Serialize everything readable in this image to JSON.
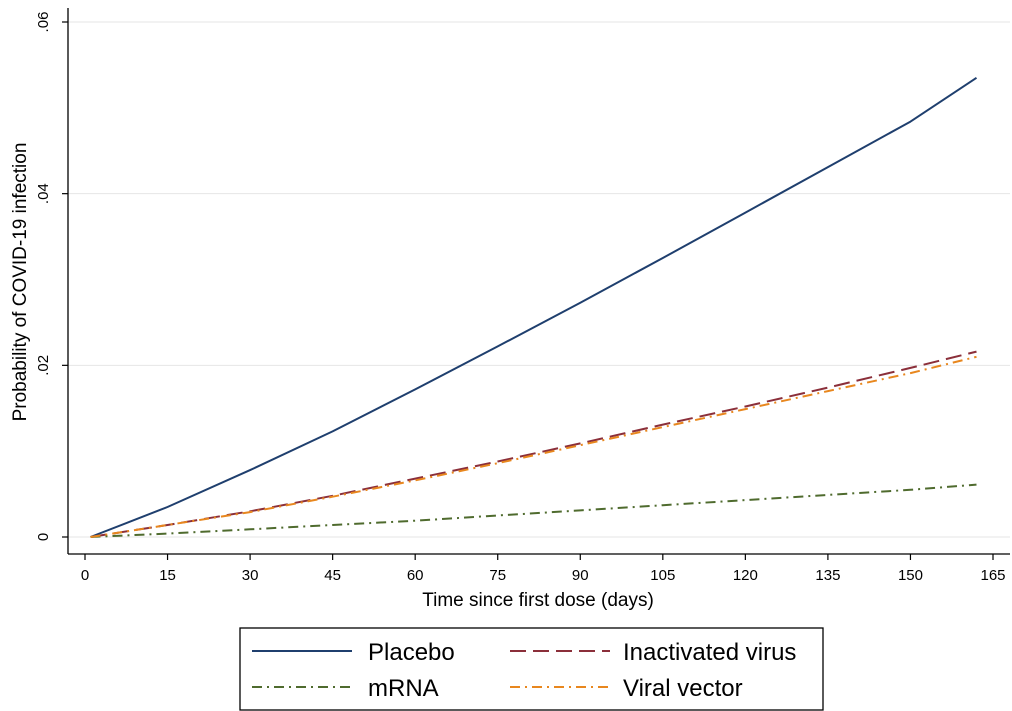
{
  "chart_data": {
    "type": "line",
    "xlabel": "Time since first dose (days)",
    "ylabel": "Probability of COVID-19 infection",
    "xlim": [
      0,
      165
    ],
    "ylim": [
      0,
      0.06
    ],
    "xticks": [
      0,
      15,
      30,
      45,
      60,
      75,
      90,
      105,
      120,
      135,
      150,
      165
    ],
    "xtick_labels": [
      "0",
      "15",
      "30",
      "45",
      "60",
      "75",
      "90",
      "105",
      "120",
      "135",
      "150",
      "165"
    ],
    "yticks": [
      0,
      0.02,
      0.04,
      0.06
    ],
    "ytick_labels": [
      "0",
      ".02",
      ".04",
      ".06"
    ],
    "grid": "horizontal",
    "legend_position": "bottom",
    "x": [
      1,
      15,
      30,
      45,
      60,
      75,
      90,
      105,
      120,
      135,
      150,
      162
    ],
    "series": [
      {
        "name": "Placebo",
        "color": "#1f3f6e",
        "dash": "solid",
        "values": [
          0,
          0.0035,
          0.0078,
          0.0123,
          0.0172,
          0.0222,
          0.0273,
          0.0325,
          0.0378,
          0.0431,
          0.0484,
          0.0535
        ]
      },
      {
        "name": "Inactivated virus",
        "color": "#8b2f3a",
        "dash": "long-dash",
        "values": [
          0,
          0.0014,
          0.003,
          0.0048,
          0.0068,
          0.0088,
          0.0109,
          0.0131,
          0.0152,
          0.0174,
          0.0197,
          0.0216
        ]
      },
      {
        "name": "mRNA",
        "color": "#4f6b2e",
        "dash": "dash-dot",
        "values": [
          0,
          0.0004,
          0.0009,
          0.0014,
          0.0019,
          0.0025,
          0.0031,
          0.0037,
          0.0043,
          0.0049,
          0.0055,
          0.0061
        ]
      },
      {
        "name": "Viral vector",
        "color": "#e8871e",
        "dash": "dash-dot",
        "values": [
          0,
          0.0014,
          0.0029,
          0.0047,
          0.0066,
          0.0086,
          0.0107,
          0.0128,
          0.0149,
          0.017,
          0.0191,
          0.021
        ]
      }
    ]
  }
}
